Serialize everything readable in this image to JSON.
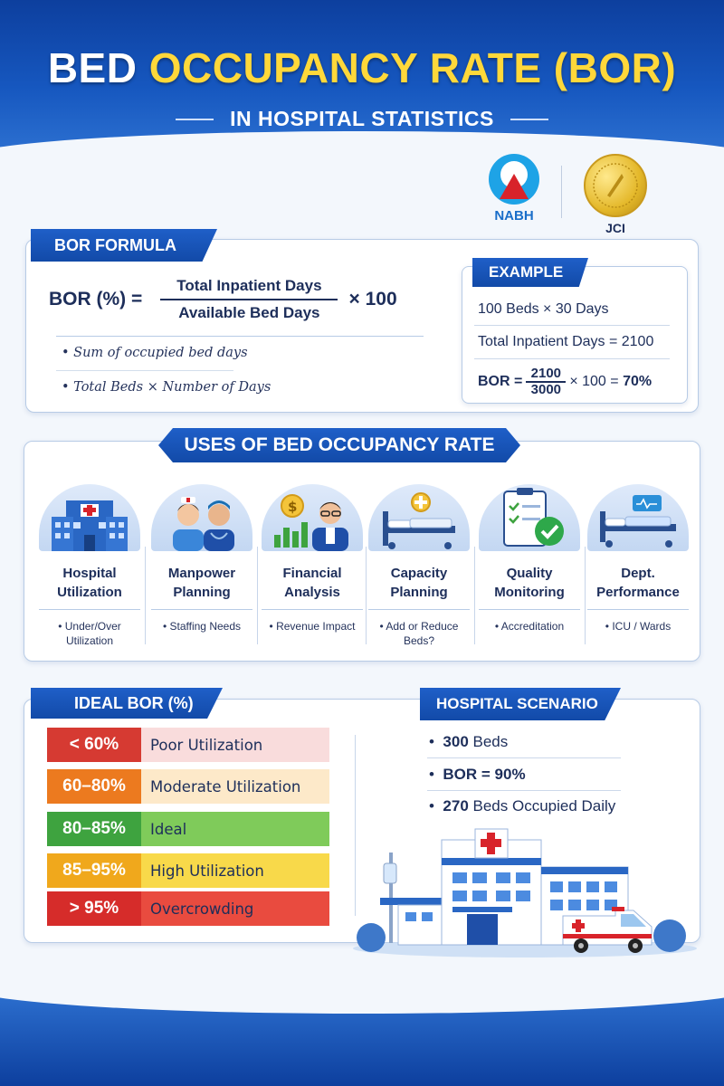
{
  "header": {
    "title_white": "BED ",
    "title_yellow": "OCCUPANCY RATE (BOR)",
    "subtitle": "IN HOSPITAL STATISTICS"
  },
  "logos": {
    "nabh": "NABH",
    "jci": "JCI"
  },
  "formula": {
    "ribbon": "BOR FORMULA",
    "lhs": "BOR (%) =",
    "numerator": "Total Inpatient Days",
    "denominator": "Available Bed Days",
    "multiplier": "× 100",
    "notes": [
      "• Sum of occupied bed days",
      "• Total Beds × Number of Days"
    ]
  },
  "example": {
    "ribbon": "EXAMPLE",
    "line1": "100 Beds × 30 Days",
    "line2": "Total Inpatient Days = 2100",
    "bor_label": "BOR =",
    "frac_num": "2100",
    "frac_den": "3000",
    "result_mid": "× 100 =",
    "result": "70%"
  },
  "uses": {
    "ribbon": "USES OF BED OCCUPANCY RATE",
    "items": [
      {
        "name": "Hospital Utilization",
        "note": "• Under/Over Utilization",
        "icon": "hospital-building-icon"
      },
      {
        "name": "Manpower Planning",
        "note": "• Staffing Needs",
        "icon": "nurse-doctor-icon"
      },
      {
        "name": "Financial Analysis",
        "note": "• Revenue Impact",
        "icon": "finance-analyst-icon"
      },
      {
        "name": "Capacity Planning",
        "note": "• Add or Reduce Beds?",
        "icon": "hospital-bed-icon"
      },
      {
        "name": "Quality Monitoring",
        "note": "• Accreditation",
        "icon": "checklist-check-icon"
      },
      {
        "name": "Dept. Performance",
        "note": "• ICU / Wards",
        "icon": "icu-bed-icon"
      }
    ]
  },
  "ideal": {
    "ribbon": "IDEAL BOR (%)",
    "rows": [
      {
        "range": "< 60%",
        "desc": "Poor Utilization",
        "color": "#d63a32",
        "bg": "#f9dcdc"
      },
      {
        "range": "60–80%",
        "desc": "Moderate Utilization",
        "color": "#ec7a1f",
        "bg": "#fde9c9"
      },
      {
        "range": "80–85%",
        "desc": "Ideal",
        "color": "#3ea33f",
        "bg": "#7fcb5a"
      },
      {
        "range": "85–95%",
        "desc": "High Utilization",
        "color": "#f0a81c",
        "bg": "#f8d94a"
      },
      {
        "range": "> 95%",
        "desc": "Overcrowding",
        "color": "#d62c2a",
        "bg": "#e94b3f"
      }
    ]
  },
  "scenario": {
    "ribbon": "HOSPITAL SCENARIO",
    "items": [
      {
        "bullet": "•",
        "bold": "300",
        "rest": " Beds"
      },
      {
        "bullet": "•",
        "bold": "BOR = 90%",
        "rest": ""
      },
      {
        "bullet": "•",
        "bold": "270",
        "rest": " Beds Occupied Daily"
      }
    ]
  }
}
